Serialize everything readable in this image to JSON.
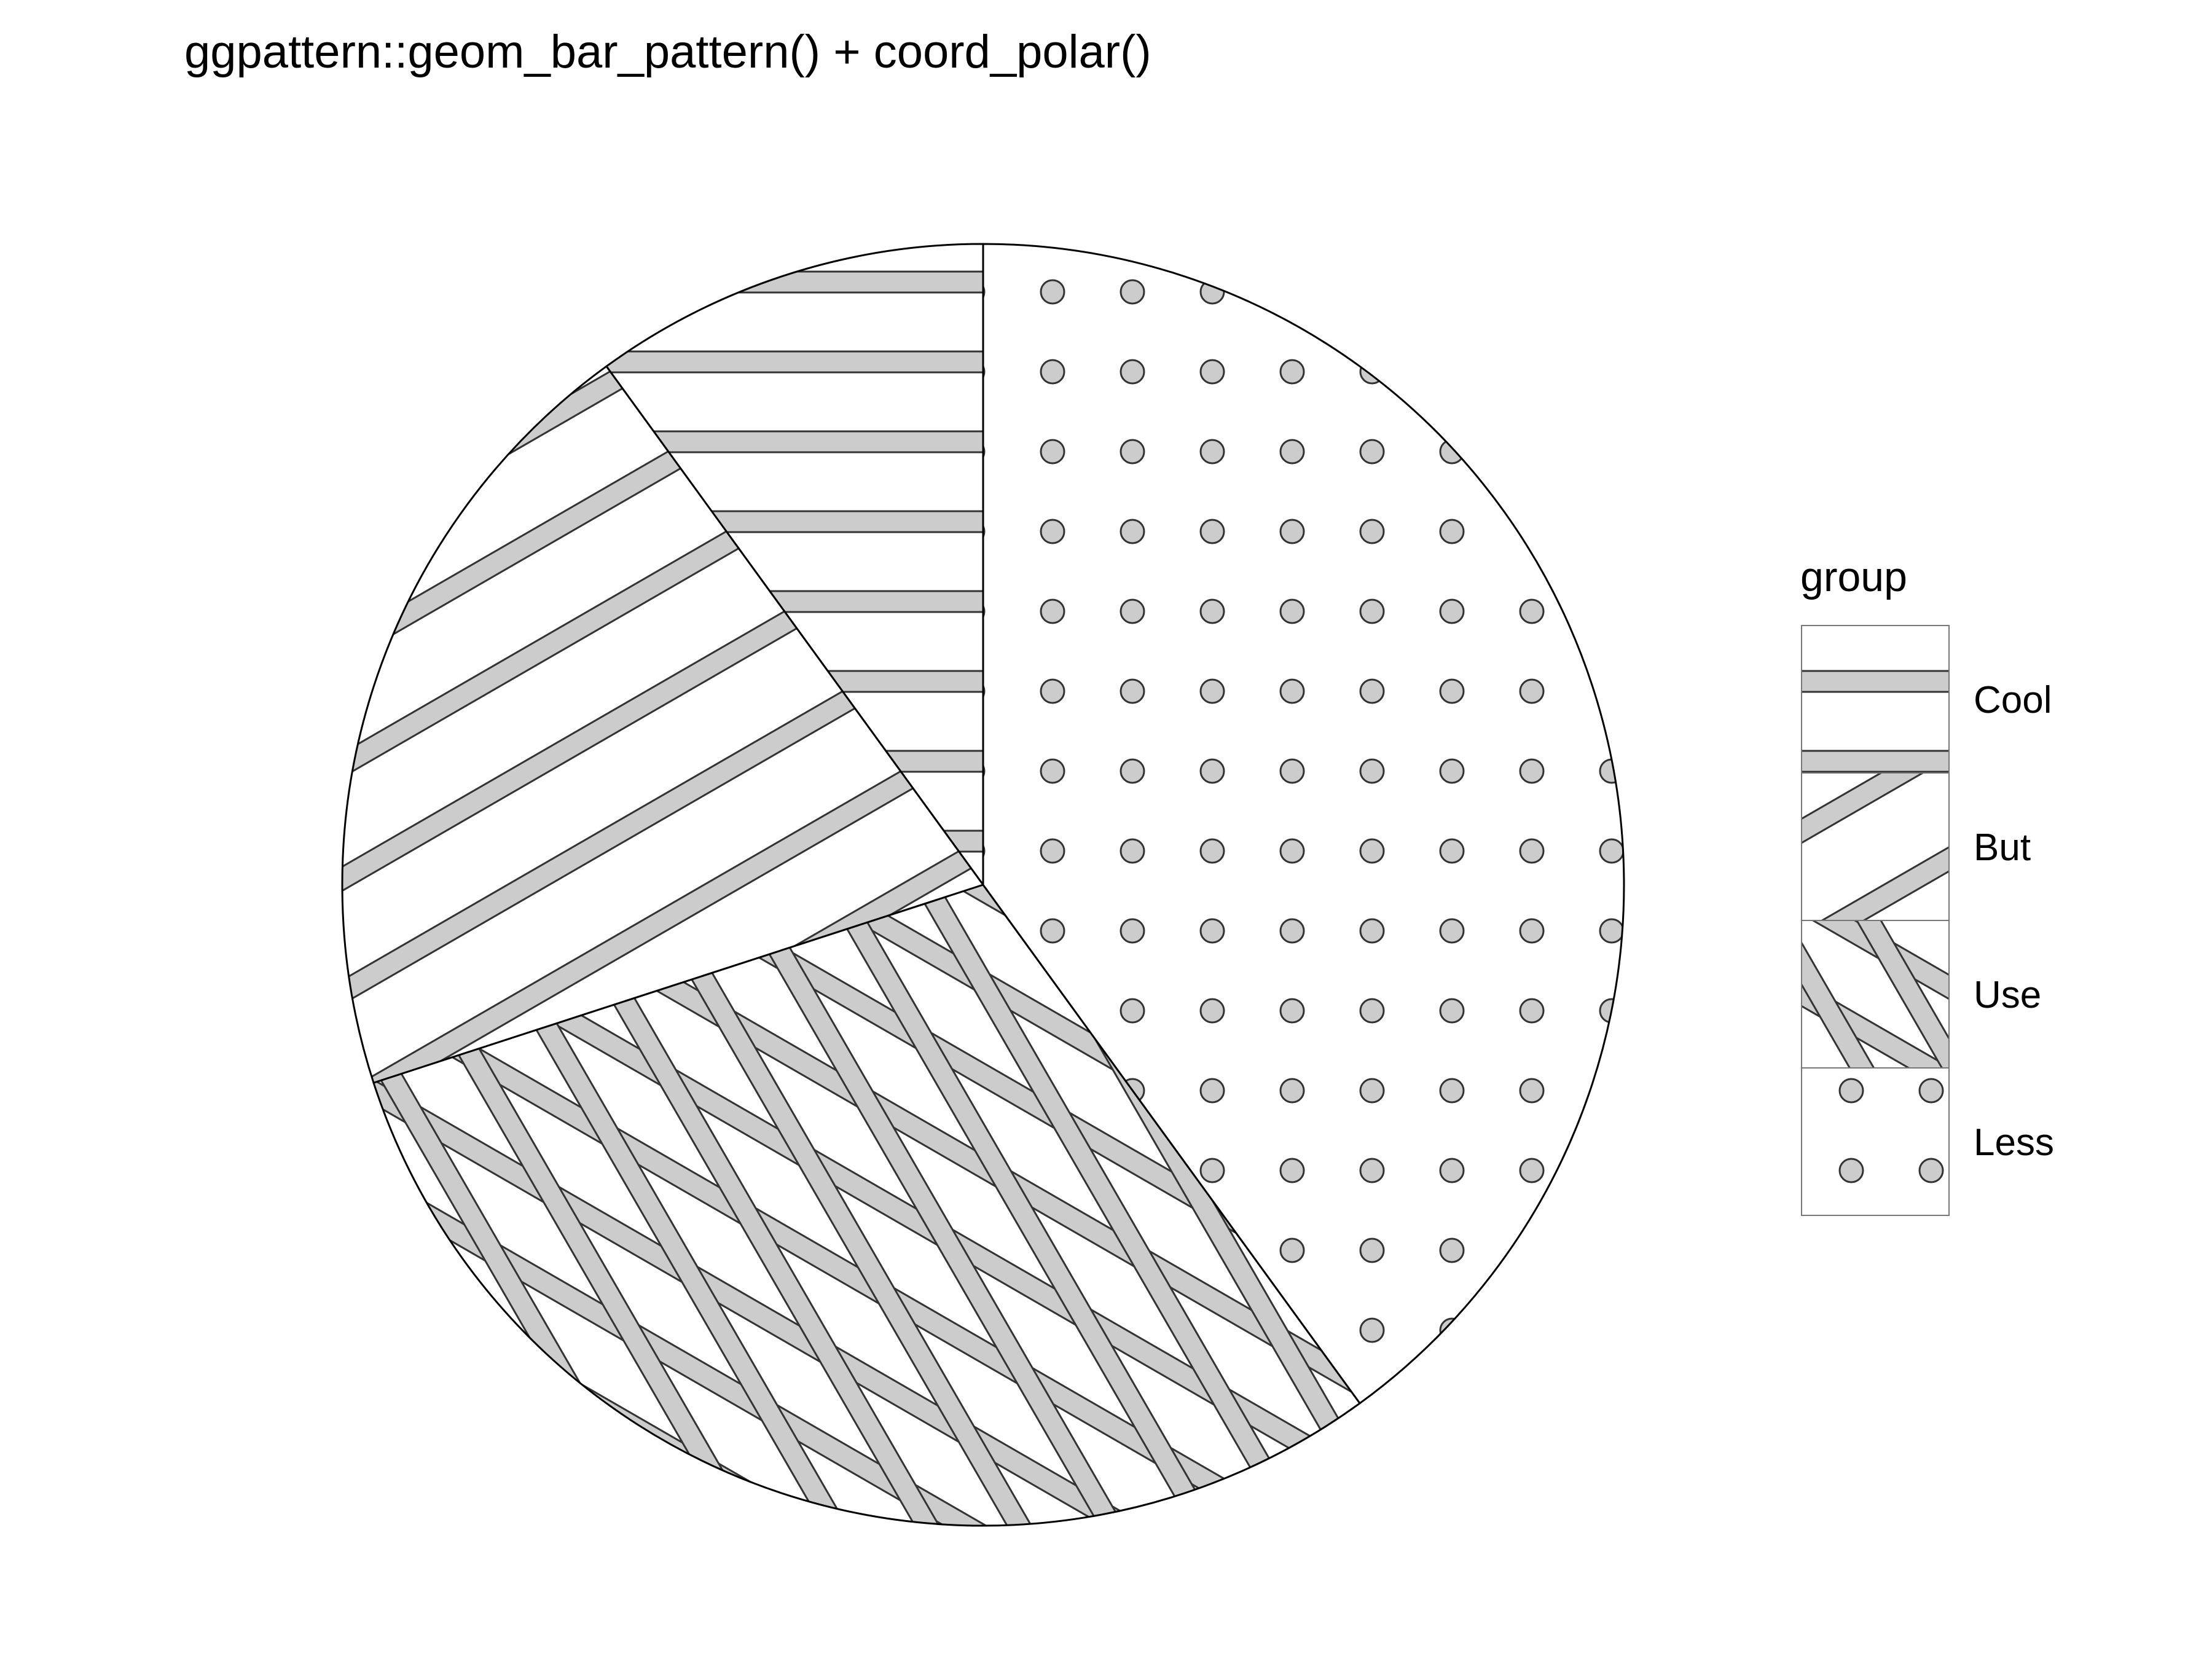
{
  "chart_data": {
    "type": "pie",
    "title": "ggpattern::geom_bar_pattern() + coord_polar()",
    "legend": {
      "title": "group",
      "position": "right",
      "entries": [
        "Cool",
        "But",
        "Use",
        "Less"
      ]
    },
    "slices": [
      {
        "label": "Cool",
        "value": 10,
        "pattern": "stripe-horizontal"
      },
      {
        "label": "But",
        "value": 20,
        "pattern": "stripe-diagonal"
      },
      {
        "label": "Use",
        "value": 30,
        "pattern": "crosshatch"
      },
      {
        "label": "Less",
        "value": 40,
        "pattern": "circles"
      }
    ],
    "colors": {
      "pattern_fill": "#cccccc",
      "outline": "#000000",
      "background": "#ffffff"
    }
  }
}
